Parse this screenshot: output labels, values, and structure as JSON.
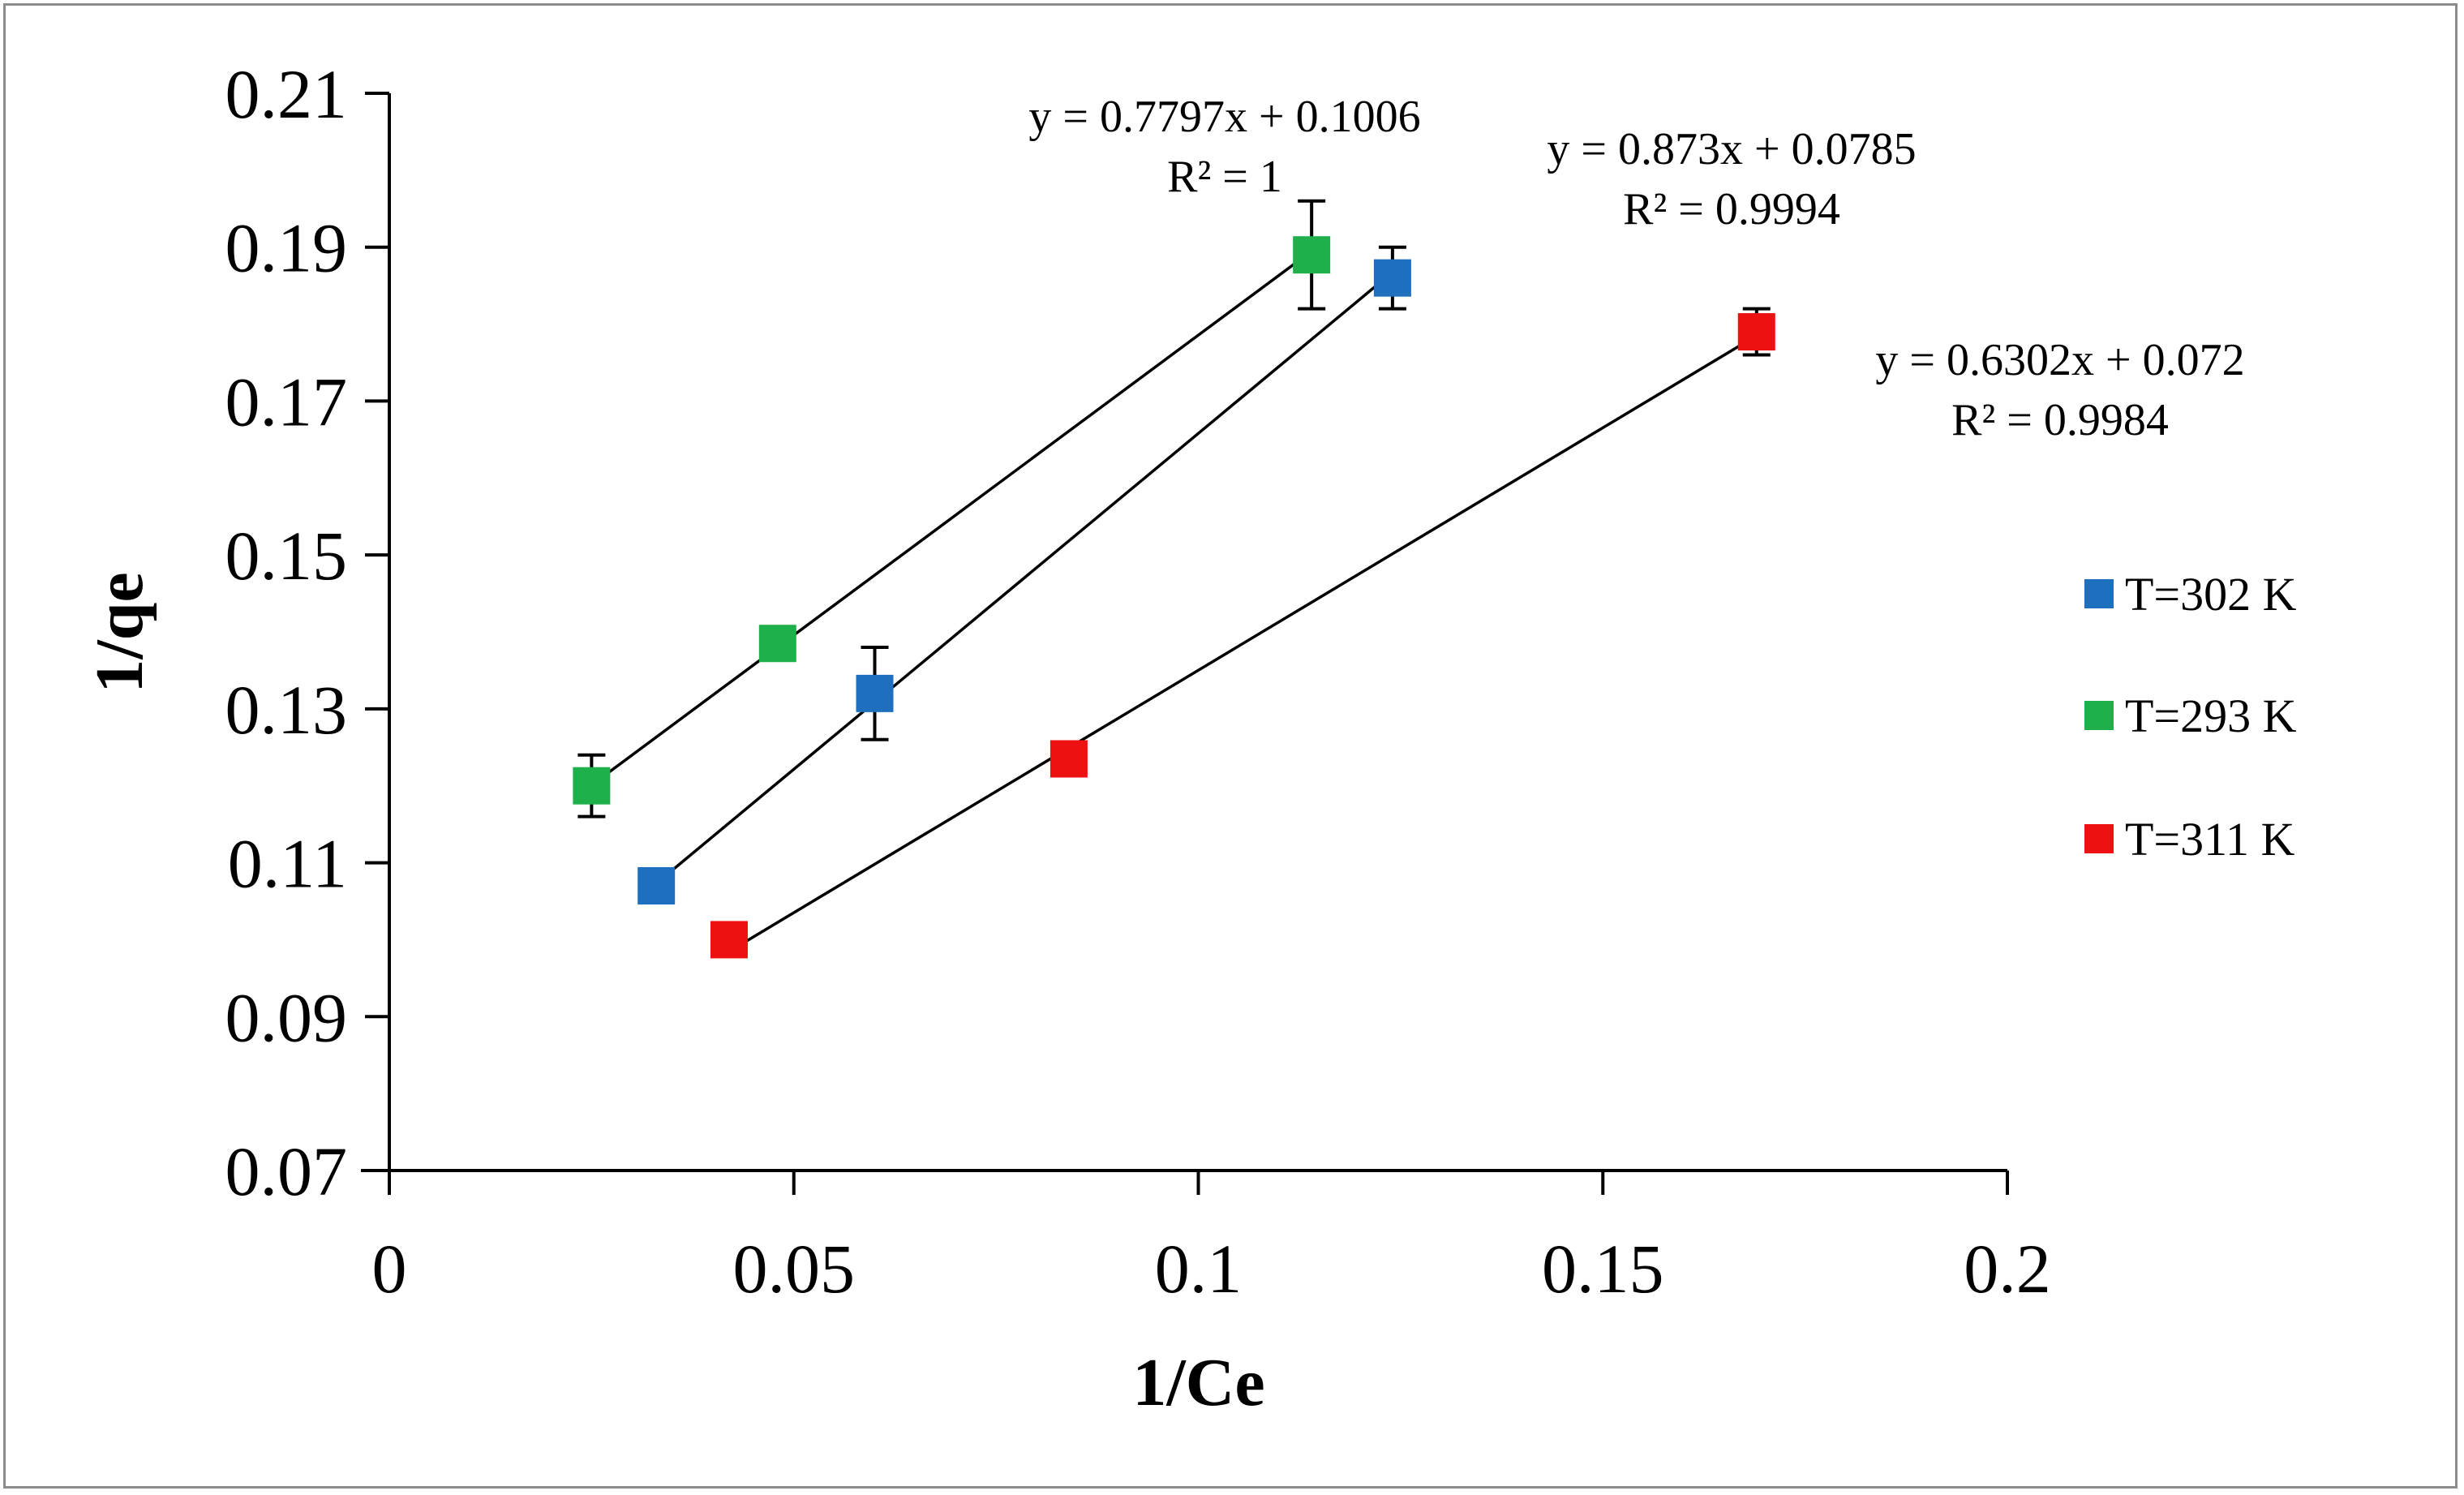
{
  "chart_data": {
    "type": "scatter",
    "title": "",
    "xlabel": "1/Ce",
    "ylabel": "1/qe",
    "xlim": [
      0,
      0.2
    ],
    "ylim": [
      0.07,
      0.21
    ],
    "x_ticks": [
      "0",
      "0.05",
      "0.1",
      "0.15",
      "0.2"
    ],
    "y_ticks": [
      "0.07",
      "0.09",
      "0.11",
      "0.13",
      "0.15",
      "0.17",
      "0.19",
      "0.21"
    ],
    "grid": false,
    "legend_position": "right",
    "series": [
      {
        "name": "T=302 K",
        "color": "#1f6fbf",
        "points": [
          {
            "x": 0.033,
            "y": 0.107,
            "err": 0.0
          },
          {
            "x": 0.06,
            "y": 0.132,
            "err": 0.006
          },
          {
            "x": 0.124,
            "y": 0.186,
            "err": 0.004
          }
        ],
        "trendline": {
          "slope": 0.873,
          "intercept": 0.0785,
          "x_from": 0.033,
          "x_to": 0.124
        },
        "equation": "y = 0.873x + 0.0785",
        "r2": "R² = 0.9994"
      },
      {
        "name": "T=293 K",
        "color": "#1fb04c",
        "points": [
          {
            "x": 0.025,
            "y": 0.12,
            "err": 0.004
          },
          {
            "x": 0.048,
            "y": 0.1385,
            "err": 0.0
          },
          {
            "x": 0.114,
            "y": 0.189,
            "err": 0.007
          }
        ],
        "trendline": {
          "slope": 0.7797,
          "intercept": 0.1006,
          "x_from": 0.025,
          "x_to": 0.114
        },
        "equation": "y = 0.7797x + 0.1006",
        "r2": "R² = 1"
      },
      {
        "name": "T=311 K",
        "color": "#ee1111",
        "points": [
          {
            "x": 0.042,
            "y": 0.1,
            "err": 0.0
          },
          {
            "x": 0.084,
            "y": 0.1235,
            "err": 0.0
          },
          {
            "x": 0.169,
            "y": 0.179,
            "err": 0.003
          }
        ],
        "trendline": {
          "slope": 0.6302,
          "intercept": 0.072,
          "x_from": 0.042,
          "x_to": 0.169
        },
        "equation": "y = 0.6302x + 0.072",
        "r2": "R² = 0.9984"
      }
    ]
  }
}
